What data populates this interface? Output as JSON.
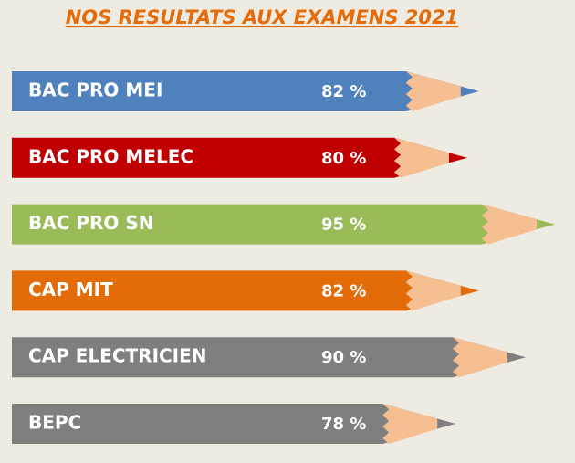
{
  "chart_data": {
    "type": "pencil-bar",
    "title": "NOS RESULTATS AUX EXAMENS 2021",
    "categories": [
      "BAC PRO MEI",
      "BAC PRO MELEC",
      "BAC PRO SN",
      "CAP MIT",
      "CAP ELECTRICIEN",
      "BEPC"
    ],
    "values": [
      82,
      80,
      95,
      82,
      90,
      78
    ],
    "value_labels": [
      "82 %",
      "80 %",
      "95 %",
      "82 %",
      "90 %",
      "78 %"
    ],
    "colors": [
      "#4f81bd",
      "#c00000",
      "#9bbb59",
      "#e36c09",
      "#7f7f7f",
      "#7f7f7f"
    ]
  }
}
